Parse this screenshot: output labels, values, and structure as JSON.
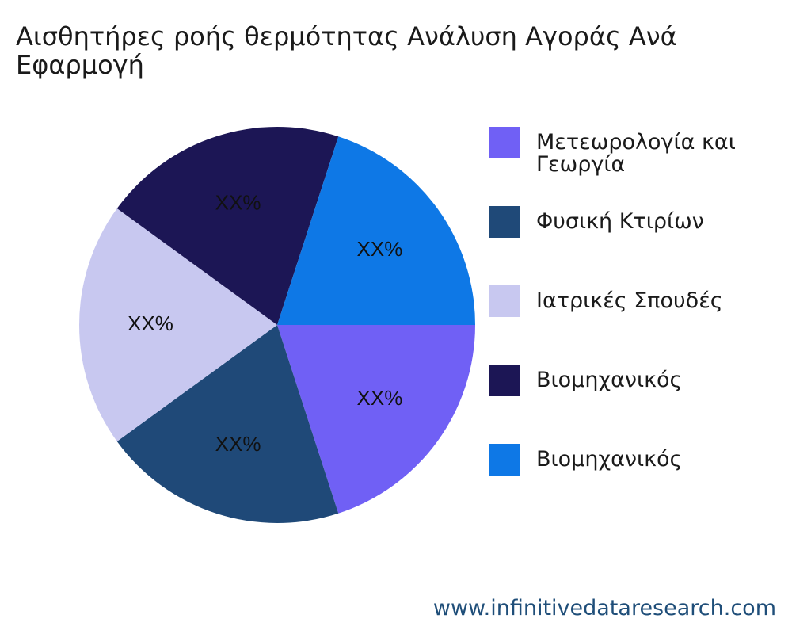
{
  "title": "Αισθητήρες ροής θερμότητας Ανάλυση Αγοράς Ανά Εφαρμογή",
  "footer": "www.infinitivedataresearch.com",
  "chart_data": {
    "type": "pie",
    "title": "Αισθητήρες ροής θερμότητας Ανάλυση Αγοράς Ανά Εφαρμογή",
    "legend_position": "right",
    "slices": [
      {
        "name": "Μετεωρολογία και Γεωργία",
        "value": 20,
        "label": "XX%",
        "color": "#7060f5"
      },
      {
        "name": "Φυσική Κτιρίων",
        "value": 20,
        "label": "XX%",
        "color": "#1f4978"
      },
      {
        "name": "Ιατρικές Σπουδές",
        "value": 20,
        "label": "XX%",
        "color": "#c8c8f0"
      },
      {
        "name": "Βιομηχανικός",
        "value": 20,
        "label": "XX%",
        "color": "#1c1655"
      },
      {
        "name": "Βιομηχανικός",
        "value": 20,
        "label": "XX%",
        "color": "#0e78e6"
      }
    ]
  }
}
